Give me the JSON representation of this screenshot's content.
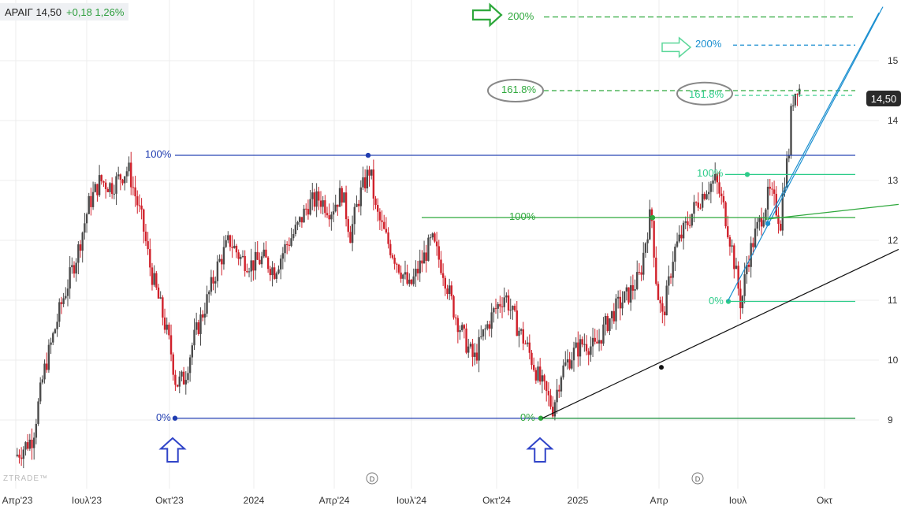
{
  "ticker": {
    "symbol": "ΑΡΑΙΓ",
    "last": "14,50",
    "change": "+0,18",
    "change_pct": "1,26%"
  },
  "last_price_tag": "14,50",
  "watermark": "ZTRADE™",
  "colors": {
    "up_candle": "#4a4a4a",
    "down_candle": "#d0202a",
    "fib_blue": "#1f3cb0",
    "fib_green": "#2ea83c",
    "fib_teal": "#2ecc8a",
    "trend_cyan": "#1a8fd0",
    "trend_black": "#111111",
    "grid": "#ececec"
  },
  "chart_data": {
    "type": "candlestick",
    "title": "",
    "y_axis": {
      "range": [
        8.5,
        15.5
      ],
      "ticks": [
        "9",
        "10",
        "11",
        "12",
        "13",
        "14",
        "15"
      ]
    },
    "x_axis": {
      "ticks": [
        "Απρ'23",
        "Ιουλ'23",
        "Οκτ'23",
        "2024",
        "Απρ'24",
        "Ιουλ'24",
        "Οκτ'24",
        "2025",
        "Απρ",
        "Ιουλ",
        "Οκτ"
      ]
    },
    "grid": true,
    "price_path": [
      [
        0,
        8.4
      ],
      [
        6,
        8.7
      ],
      [
        10,
        9.8
      ],
      [
        16,
        10.9
      ],
      [
        22,
        11.8
      ],
      [
        26,
        12.6
      ],
      [
        30,
        13.0
      ],
      [
        34,
        12.9
      ],
      [
        40,
        13.2
      ],
      [
        45,
        12.3
      ],
      [
        48,
        11.5
      ],
      [
        52,
        10.8
      ],
      [
        55,
        10.2
      ],
      [
        57,
        9.6
      ],
      [
        60,
        9.7
      ],
      [
        63,
        10.3
      ],
      [
        68,
        11.0
      ],
      [
        72,
        11.6
      ],
      [
        76,
        12.0
      ],
      [
        80,
        11.7
      ],
      [
        84,
        11.6
      ],
      [
        88,
        11.7
      ],
      [
        92,
        11.5
      ],
      [
        96,
        11.9
      ],
      [
        100,
        12.2
      ],
      [
        104,
        12.6
      ],
      [
        108,
        12.7
      ],
      [
        112,
        12.5
      ],
      [
        116,
        12.8
      ],
      [
        119,
        12.1
      ],
      [
        122,
        12.7
      ],
      [
        126,
        13.2
      ],
      [
        128,
        12.5
      ],
      [
        132,
        12.0
      ],
      [
        136,
        11.6
      ],
      [
        140,
        11.2
      ],
      [
        144,
        11.6
      ],
      [
        148,
        12.0
      ],
      [
        152,
        11.5
      ],
      [
        156,
        10.8
      ],
      [
        160,
        10.3
      ],
      [
        163,
        10.0
      ],
      [
        166,
        10.4
      ],
      [
        170,
        10.8
      ],
      [
        174,
        11.1
      ],
      [
        178,
        10.6
      ],
      [
        182,
        10.2
      ],
      [
        186,
        9.7
      ],
      [
        189,
        9.4
      ],
      [
        191,
        9.2
      ],
      [
        194,
        9.8
      ],
      [
        198,
        10.1
      ],
      [
        202,
        10.3
      ],
      [
        206,
        10.2
      ],
      [
        210,
        10.6
      ],
      [
        214,
        10.9
      ],
      [
        218,
        11.1
      ],
      [
        222,
        11.4
      ],
      [
        224,
        12.0
      ],
      [
        226,
        12.5
      ],
      [
        228,
        11.2
      ],
      [
        230,
        10.7
      ],
      [
        232,
        11.2
      ],
      [
        234,
        11.8
      ],
      [
        238,
        12.2
      ],
      [
        242,
        12.6
      ],
      [
        246,
        12.9
      ],
      [
        249,
        13.0
      ],
      [
        252,
        12.5
      ],
      [
        255,
        11.8
      ],
      [
        258,
        10.9
      ],
      [
        260,
        11.6
      ],
      [
        263,
        12.1
      ],
      [
        266,
        12.5
      ],
      [
        268,
        12.8
      ],
      [
        270,
        12.6
      ],
      [
        272,
        12.3
      ],
      [
        273,
        12.9
      ],
      [
        275,
        13.5
      ],
      [
        276,
        14.3
      ],
      [
        278,
        14.6
      ],
      [
        279,
        14.5
      ]
    ],
    "x_domain": [
      0,
      300
    ],
    "fib_levels": [
      {
        "set": "blue",
        "pct": "100%",
        "value": 13.42
      },
      {
        "set": "blue",
        "pct": "0%",
        "value": 9.03
      },
      {
        "set": "green",
        "pct": "100%",
        "value": 12.38
      },
      {
        "set": "green",
        "pct": "0%",
        "value": 9.03
      },
      {
        "set": "green",
        "pct": "161.8%",
        "value": 14.5
      },
      {
        "set": "green",
        "pct": "200%",
        "value": 15.73
      },
      {
        "set": "teal",
        "pct": "100%",
        "value": 13.1
      },
      {
        "set": "teal",
        "pct": "0%",
        "value": 10.98
      },
      {
        "set": "teal",
        "pct": "161.8%",
        "value": 14.42
      },
      {
        "set": "teal",
        "pct": "200%",
        "value": 15.26
      }
    ],
    "annotations": [
      "D",
      "D"
    ]
  }
}
